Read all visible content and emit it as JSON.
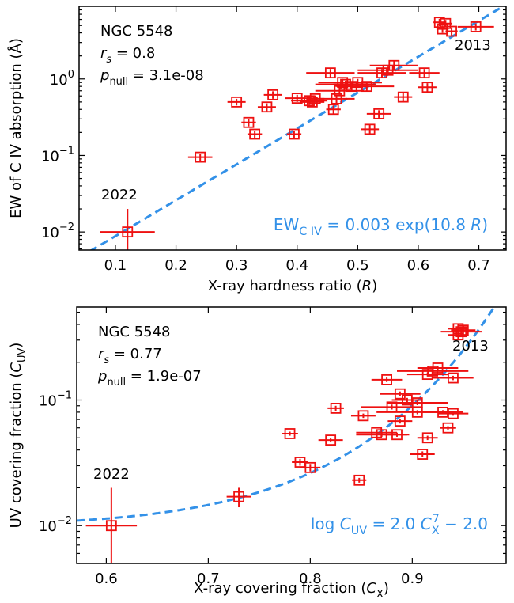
{
  "chart_data": [
    {
      "type": "scatter",
      "log_y": true,
      "color": "#ee1111",
      "xlabel": [
        {
          "text": "X-ray hardness ratio ("
        },
        {
          "text": "R",
          "style": "italic"
        },
        {
          "text": ")"
        }
      ],
      "ylabel": [
        {
          "text": "EW of C IV absorption (Å)"
        }
      ],
      "annotations": {
        "object": "NGC 5548",
        "rs": [
          {
            "text": "r",
            "style": "italic"
          },
          {
            "text": "s",
            "style": "subitalic"
          },
          {
            "text": " = 0.8"
          }
        ],
        "pnull": [
          {
            "text": "p",
            "style": "italic"
          },
          {
            "text": "null",
            "style": "sub"
          },
          {
            "text": " = 3.1e-08"
          }
        ],
        "late": "2013",
        "early": "2022"
      },
      "fit": {
        "form": "exp",
        "a": 0.003,
        "b": 10.8,
        "color": "#3391e8",
        "label": [
          {
            "text": "EW"
          },
          {
            "text": "C IV",
            "style": "sub"
          },
          {
            "text": " = 0.003 exp(10.8 "
          },
          {
            "text": "R",
            "style": "italic"
          },
          {
            "text": ")"
          }
        ]
      },
      "x": [
        0.12,
        0.24,
        0.3,
        0.32,
        0.33,
        0.35,
        0.36,
        0.395,
        0.4,
        0.42,
        0.425,
        0.43,
        0.455,
        0.46,
        0.465,
        0.47,
        0.475,
        0.48,
        0.49,
        0.5,
        0.515,
        0.52,
        0.535,
        0.54,
        0.55,
        0.56,
        0.575,
        0.61,
        0.615,
        0.635,
        0.64,
        0.645,
        0.655,
        0.695
      ],
      "y": [
        0.01,
        0.095,
        0.5,
        0.27,
        0.19,
        0.43,
        0.62,
        0.19,
        0.56,
        0.52,
        0.5,
        0.55,
        1.2,
        0.4,
        0.55,
        0.7,
        0.9,
        0.85,
        0.8,
        0.9,
        0.8,
        0.22,
        0.35,
        1.2,
        1.3,
        1.5,
        0.58,
        1.2,
        0.78,
        5.5,
        4.5,
        5.3,
        4.2,
        4.8
      ],
      "xerr": [
        0.045,
        0.02,
        0.015,
        0.012,
        0.012,
        0.015,
        0.015,
        0.012,
        0.02,
        0.03,
        0.02,
        0.015,
        0.04,
        0.012,
        0.03,
        0.04,
        0.04,
        0.05,
        0.025,
        0.04,
        0.045,
        0.015,
        0.02,
        0.04,
        0.05,
        0.04,
        0.015,
        0.025,
        0.015,
        0.01,
        0.01,
        0.01,
        0.01,
        0.03
      ],
      "yerr": [
        0.01,
        0.01,
        0.05,
        0.03,
        0.02,
        0.05,
        0.07,
        0.02,
        0.06,
        0.06,
        0.06,
        0.06,
        0.15,
        0.05,
        0.07,
        0.08,
        0.1,
        0.1,
        0.1,
        0.1,
        0.1,
        0.03,
        0.04,
        0.15,
        0.15,
        0.2,
        0.07,
        0.15,
        0.1,
        0.6,
        0.5,
        0.6,
        0.5,
        0.5
      ],
      "xlim": [
        0.04,
        0.745
      ],
      "ylim": [
        0.0058,
        8.9
      ],
      "xticks": [
        0.1,
        0.2,
        0.3,
        0.4,
        0.5,
        0.6,
        0.7
      ],
      "yticks": [
        {
          "value": 0.01,
          "label": "10",
          "exp": "−2"
        },
        {
          "value": 0.1,
          "label": "10",
          "exp": "−1"
        },
        {
          "value": 1,
          "label": "10",
          "exp": "0"
        }
      ],
      "yminorticks": [
        0.006,
        0.007,
        0.008,
        0.009,
        0.02,
        0.03,
        0.04,
        0.05,
        0.06,
        0.07,
        0.08,
        0.09,
        0.2,
        0.3,
        0.4,
        0.5,
        0.6,
        0.7,
        0.8,
        0.9,
        2,
        3,
        4,
        5,
        6,
        7,
        8
      ]
    },
    {
      "type": "scatter",
      "log_y": true,
      "color": "#ee1111",
      "xlabel": [
        {
          "text": "X-ray covering fraction ("
        },
        {
          "text": "C",
          "style": "italic"
        },
        {
          "text": "X",
          "style": "sub"
        },
        {
          "text": ")"
        }
      ],
      "ylabel": [
        {
          "text": "UV covering fraction ("
        },
        {
          "text": "C",
          "style": "italic"
        },
        {
          "text": "UV",
          "style": "sub"
        },
        {
          "text": ")"
        }
      ],
      "annotations": {
        "object": "NGC 5548",
        "rs": [
          {
            "text": "r",
            "style": "italic"
          },
          {
            "text": "s",
            "style": "subitalic"
          },
          {
            "text": " = 0.77"
          }
        ],
        "pnull": [
          {
            "text": "p",
            "style": "italic"
          },
          {
            "text": "null",
            "style": "sub"
          },
          {
            "text": " = 1.9e-07"
          }
        ],
        "late": "2013",
        "early": "2022"
      },
      "fit": {
        "form": "log_power",
        "a": 2.0,
        "n": 7,
        "c": -2.0,
        "color": "#3391e8",
        "label": [
          {
            "text": "log "
          },
          {
            "text": "C",
            "style": "italic"
          },
          {
            "text": "UV",
            "style": "sub"
          },
          {
            "text": " = 2.0 "
          },
          {
            "text": "C",
            "style": "italic"
          },
          {
            "text": "X",
            "style": "sub"
          },
          {
            "text": "7",
            "style": "supstack"
          },
          {
            "text": " − 2.0"
          }
        ]
      },
      "x": [
        0.605,
        0.73,
        0.78,
        0.79,
        0.8,
        0.82,
        0.825,
        0.848,
        0.852,
        0.865,
        0.87,
        0.875,
        0.88,
        0.885,
        0.888,
        0.888,
        0.895,
        0.905,
        0.905,
        0.91,
        0.915,
        0.915,
        0.92,
        0.925,
        0.93,
        0.935,
        0.94,
        0.94,
        0.945,
        0.945,
        0.948,
        0.95
      ],
      "y": [
        0.01,
        0.017,
        0.054,
        0.032,
        0.029,
        0.048,
        0.086,
        0.023,
        0.075,
        0.055,
        0.053,
        0.145,
        0.088,
        0.053,
        0.068,
        0.112,
        0.1,
        0.08,
        0.095,
        0.037,
        0.05,
        0.16,
        0.17,
        0.18,
        0.08,
        0.06,
        0.078,
        0.15,
        0.37,
        0.33,
        0.35,
        0.36
      ],
      "xerr": [
        0.025,
        0.012,
        0.008,
        0.008,
        0.01,
        0.012,
        0.008,
        0.007,
        0.012,
        0.02,
        0.025,
        0.015,
        0.03,
        0.012,
        0.012,
        0.02,
        0.015,
        0.04,
        0.03,
        0.012,
        0.01,
        0.02,
        0.035,
        0.02,
        0.02,
        0.008,
        0.015,
        0.02,
        0.01,
        0.01,
        0.02,
        0.012
      ],
      "yerr": [
        0.01,
        0.003,
        0.002,
        0.002,
        0.002,
        0.002,
        0.004,
        0.001,
        0.003,
        0.002,
        0.002,
        0.006,
        0.004,
        0.002,
        0.003,
        0.005,
        0.004,
        0.003,
        0.004,
        0.002,
        0.002,
        0.006,
        0.007,
        0.007,
        0.003,
        0.002,
        0.003,
        0.006,
        0.03,
        0.03,
        0.03,
        0.03
      ],
      "xlim": [
        0.571,
        0.992
      ],
      "ylim": [
        0.005,
        0.55
      ],
      "xticks": [
        0.6,
        0.7,
        0.8,
        0.9
      ],
      "yticks": [
        {
          "value": 0.01,
          "label": "10",
          "exp": "−2"
        },
        {
          "value": 0.1,
          "label": "10",
          "exp": "−1"
        }
      ],
      "yminorticks": [
        0.005,
        0.006,
        0.007,
        0.008,
        0.009,
        0.02,
        0.03,
        0.04,
        0.05,
        0.06,
        0.07,
        0.08,
        0.09,
        0.2,
        0.3,
        0.4,
        0.5
      ]
    }
  ]
}
